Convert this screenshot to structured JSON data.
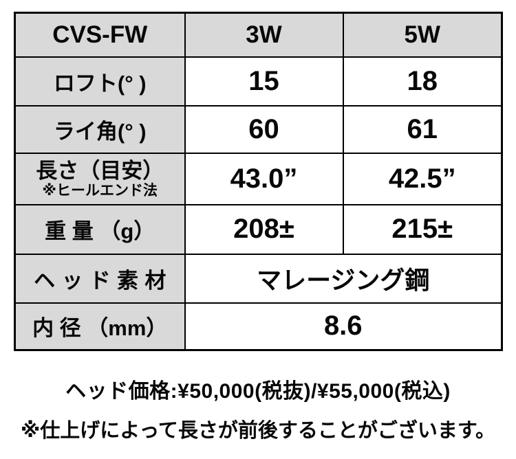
{
  "table": {
    "header": {
      "model": "CVS-FW",
      "col1": "3W",
      "col2": "5W"
    },
    "loft": {
      "label": "ロフト(° )",
      "w3": "15",
      "w5": "18"
    },
    "lie": {
      "label": "ライ角(° )",
      "w3": "60",
      "w5": "61"
    },
    "length": {
      "label": "長さ（目安）",
      "sublabel": "※ヒールエンド法",
      "w3": "43.0”",
      "w5": "42.5”"
    },
    "weight": {
      "label": "重 量 （g）",
      "w3": "208±",
      "w5": "215±"
    },
    "material": {
      "label": "ヘッド素材",
      "value": "マレージング鋼"
    },
    "diameter": {
      "label": "内 径 （mm）",
      "value": "8.6"
    }
  },
  "footer": {
    "price": "ヘッド価格:¥50,000(税抜)/¥55,000(税込)",
    "note": "※仕上げによって長さが前後することがございます。"
  },
  "colors": {
    "header_bg": "#d9d9d9",
    "border": "#000000",
    "text": "#080808",
    "background": "#ffffff"
  }
}
